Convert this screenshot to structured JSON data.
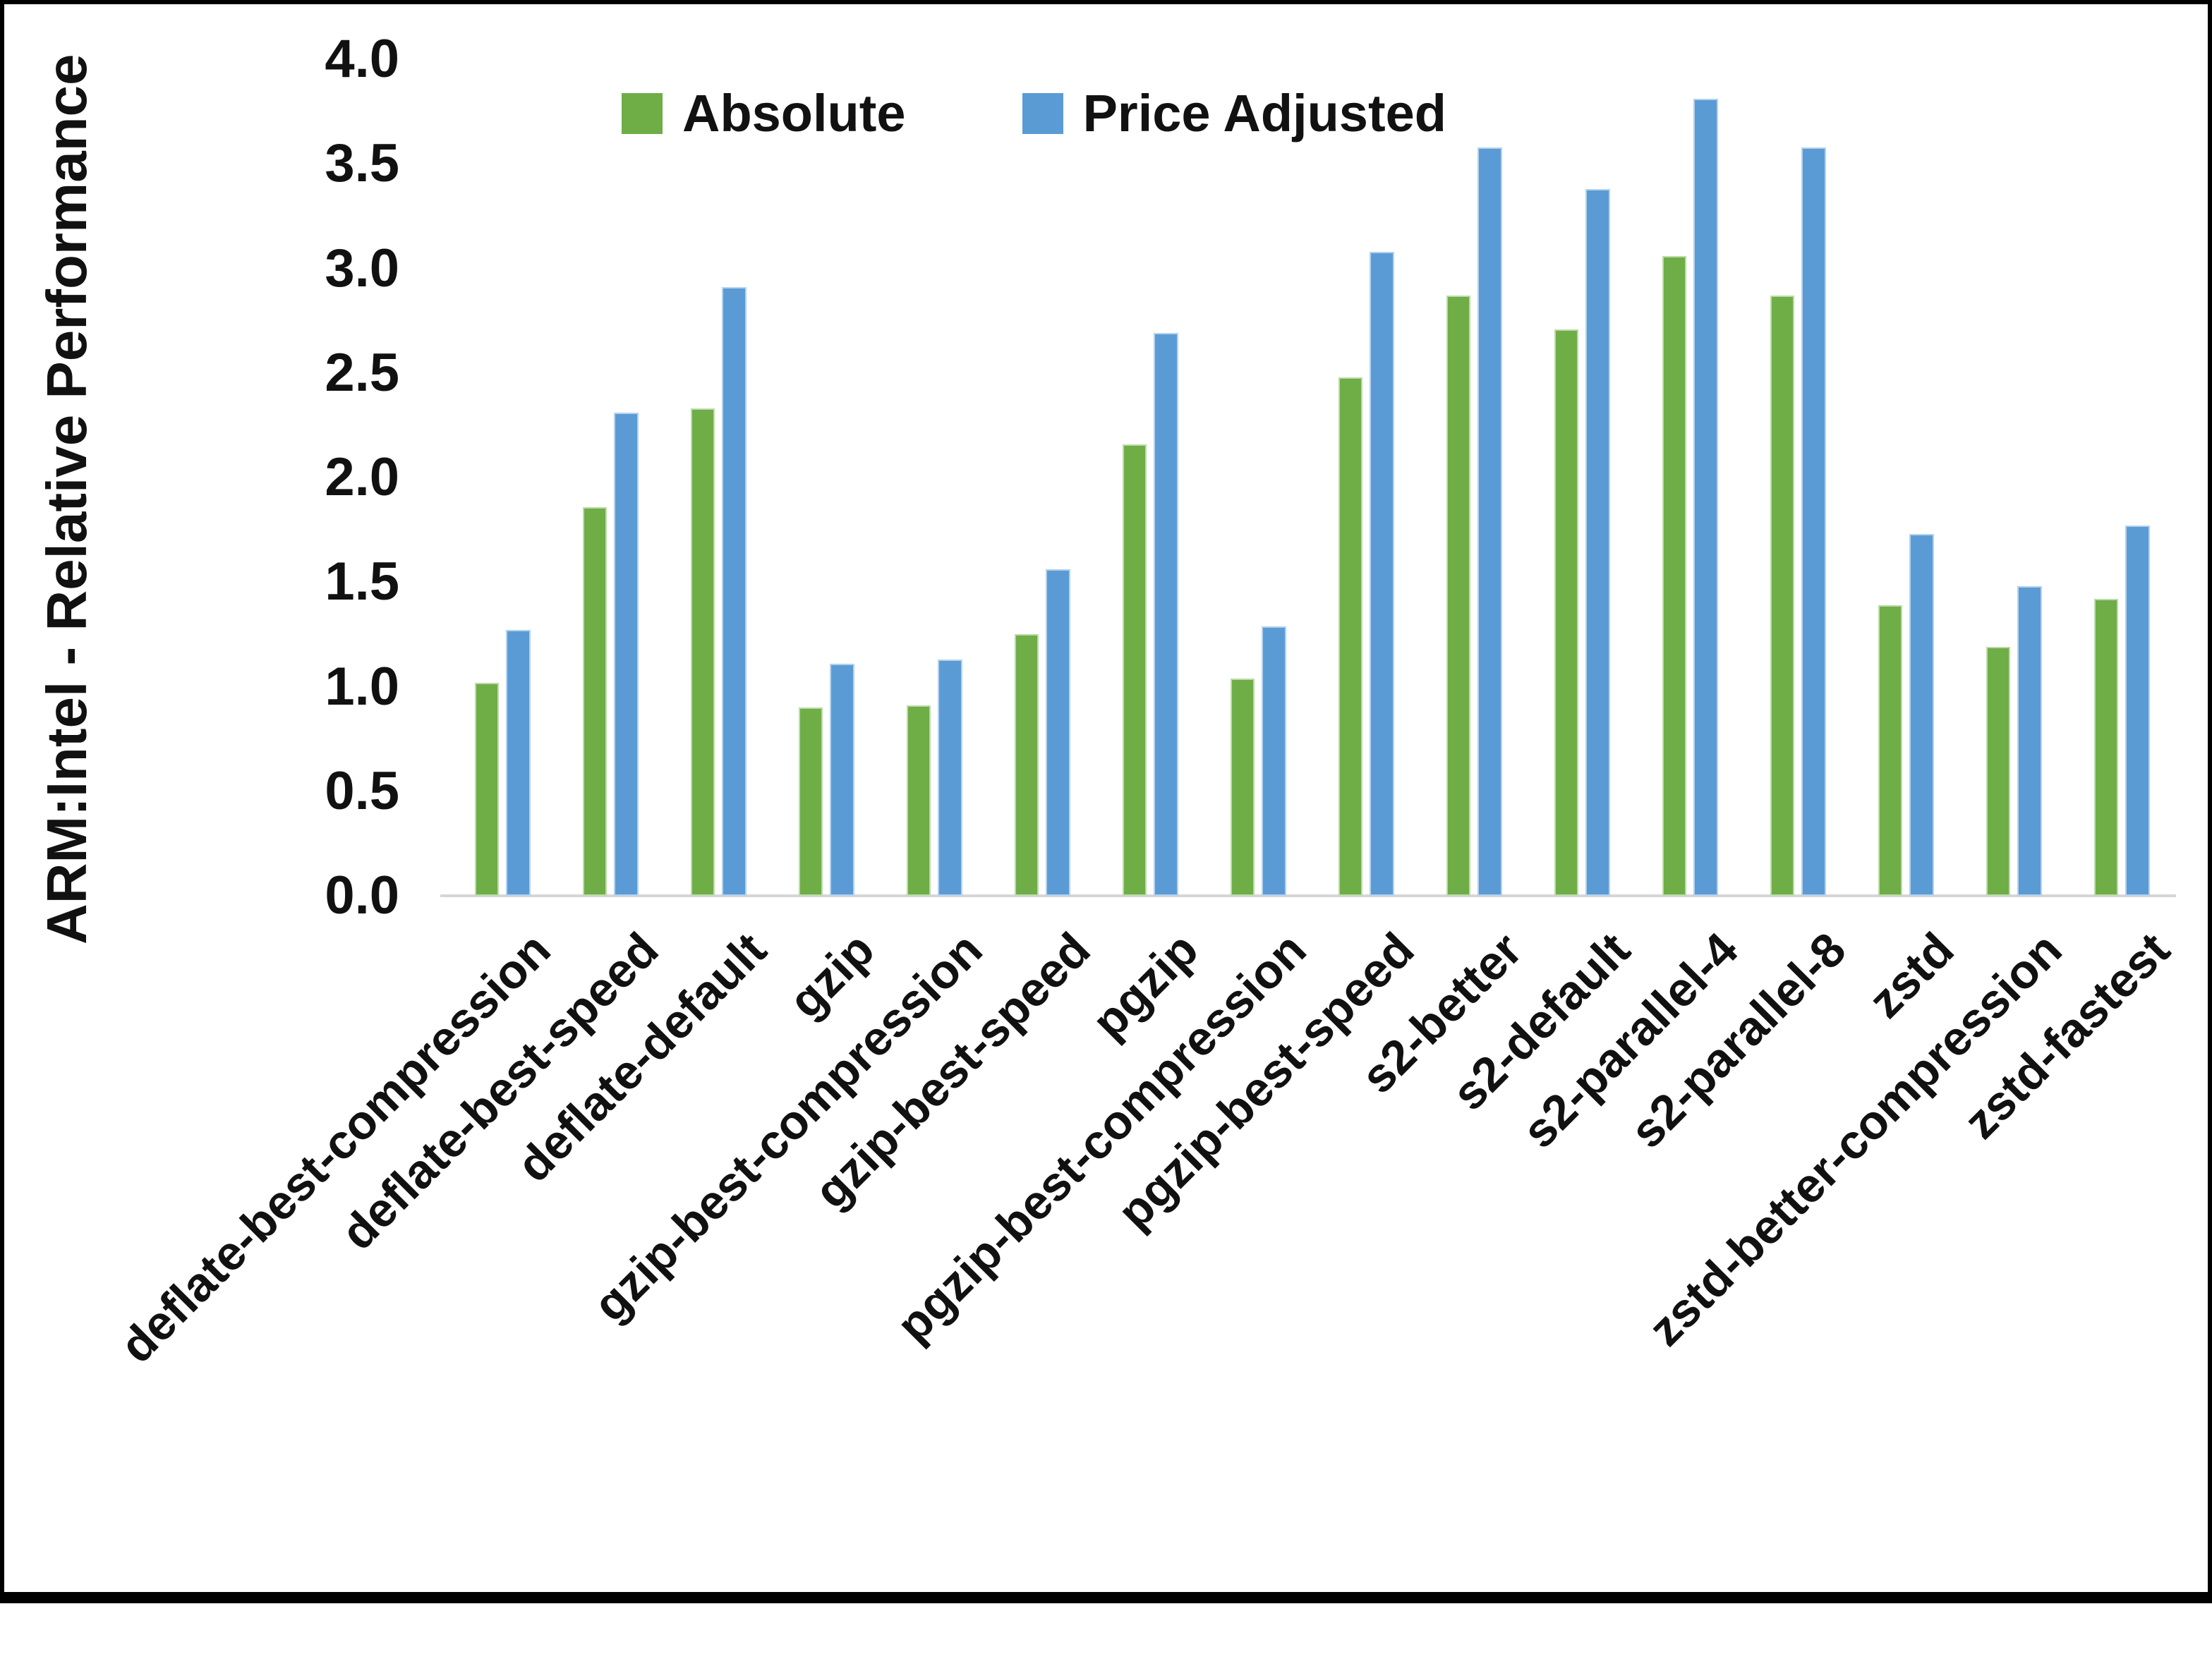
{
  "chart_data": {
    "type": "bar",
    "title": "",
    "xlabel": "",
    "ylabel": "ARM:Intel - Relative Performance",
    "ylim": [
      0.0,
      4.0
    ],
    "ytick_step": 0.5,
    "yticks": [
      "4.0",
      "3.5",
      "3.0",
      "2.5",
      "2.0",
      "1.5",
      "1.0",
      "0.5",
      "0.0"
    ],
    "grid": false,
    "legend_position": "top-center-inside",
    "categories": [
      "deflate-best-compression",
      "deflate-best-speed",
      "deflate-default",
      "gzip",
      "gzip-best-compression",
      "gzip-best-speed",
      "pgzip",
      "pgzip-best-compression",
      "pgzip-best-speed",
      "s2-better",
      "s2-default",
      "s2-parallel-4",
      "s2-parallel-8",
      "zstd",
      "zstd-better-compression",
      "zstd-fastest"
    ],
    "series": [
      {
        "name": "Absolute",
        "color": "#6fad47",
        "values": [
          1.02,
          1.86,
          2.33,
          0.9,
          0.91,
          1.25,
          2.16,
          1.04,
          2.48,
          2.87,
          2.71,
          3.06,
          2.87,
          1.39,
          1.19,
          1.42
        ]
      },
      {
        "name": "Price Adjusted",
        "color": "#5b9bd5",
        "values": [
          1.27,
          2.31,
          2.91,
          1.11,
          1.13,
          1.56,
          2.69,
          1.29,
          3.08,
          3.58,
          3.38,
          3.81,
          3.58,
          1.73,
          1.48,
          1.77
        ]
      }
    ],
    "axis_line_color": "#d6d6d6",
    "text_color": "#111111"
  }
}
